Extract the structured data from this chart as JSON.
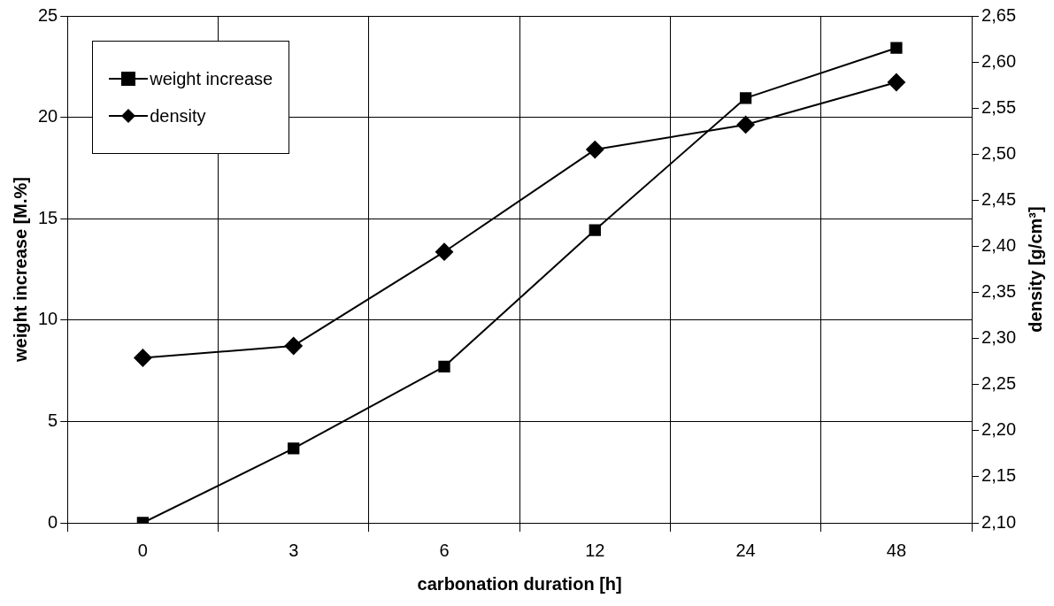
{
  "chart_data": {
    "type": "line",
    "xlabel": "carbonation duration [h]",
    "ylabel": "weight increase [M.%]",
    "y2label": "density [g/cm³]",
    "categories": [
      "0",
      "3",
      "6",
      "12",
      "24",
      "48"
    ],
    "series": [
      {
        "name": "weight increase",
        "color": "#000000",
        "marker": "square",
        "values": [
          0,
          3.67,
          7.71,
          14.44,
          20.95,
          23.42
        ]
      },
      {
        "name": "density",
        "color": "#000000",
        "marker": "diamond",
        "axis": "y2",
        "values": [
          2.279,
          2.292,
          2.394,
          2.505,
          2.532,
          2.578
        ]
      }
    ],
    "ylim": [
      0,
      25
    ],
    "yticks": [
      0,
      5,
      10,
      15,
      20,
      25
    ],
    "y2lim": [
      2.1,
      2.65
    ],
    "y2ticks": [
      {
        "value": 2.1,
        "label": "2,10"
      },
      {
        "value": 2.15,
        "label": "2,15"
      },
      {
        "value": 2.2,
        "label": "2,20"
      },
      {
        "value": 2.25,
        "label": "2,25"
      },
      {
        "value": 2.3,
        "label": "2,30"
      },
      {
        "value": 2.35,
        "label": "2,35"
      },
      {
        "value": 2.4,
        "label": "2,40"
      },
      {
        "value": 2.45,
        "label": "2,45"
      },
      {
        "value": 2.5,
        "label": "2,50"
      },
      {
        "value": 2.55,
        "label": "2,55"
      },
      {
        "value": 2.6,
        "label": "2,60"
      },
      {
        "value": 2.65,
        "label": "2,65"
      }
    ],
    "grid": true,
    "legend": "top left",
    "line_style": "solid"
  }
}
